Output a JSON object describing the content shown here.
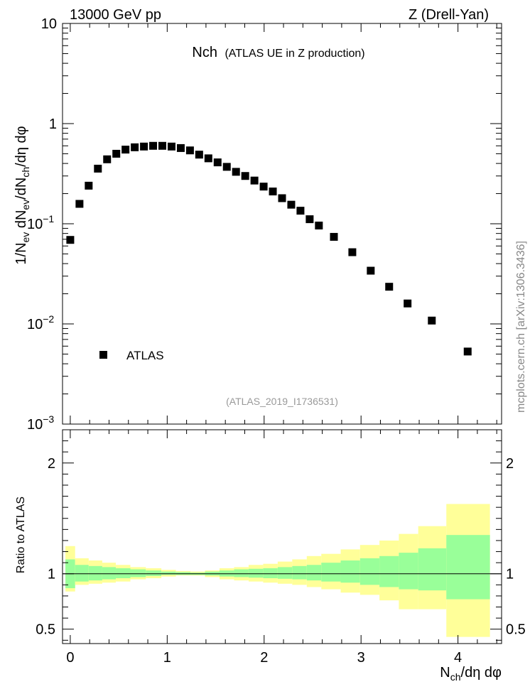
{
  "header": {
    "left": "13000 GeV pp",
    "right": "Z (Drell-Yan)"
  },
  "plot": {
    "title_main": "Nch",
    "title_sub": "(ATLAS UE in Z production)",
    "analysis_id": "(ATLAS_2019_I1736531)",
    "side_label": "mcplots.cern.ch [arXiv:1306.3436]"
  },
  "colors": {
    "marker": "#000000",
    "band_inner": "#99ff99",
    "band_outer": "#ffff99",
    "analysis_id_text": "#999999",
    "side_label_text": "#888888"
  },
  "chart_data": [
    {
      "type": "scatter",
      "panel": "main",
      "y_scale": "log",
      "ylim": [
        0.001,
        10
      ],
      "xlim": [
        -0.08,
        4.45
      ],
      "ylabel": "1/N_ev dN_ev/dN_ch/dη dφ",
      "y_ticks": [
        {
          "value": 10,
          "label": "10"
        },
        {
          "value": 1,
          "label": "1"
        },
        {
          "value": 0.1,
          "label": "10",
          "exp": "−1"
        },
        {
          "value": 0.01,
          "label": "10",
          "exp": "−2"
        },
        {
          "value": 0.001,
          "label": "10",
          "exp": "−3"
        }
      ],
      "legend": {
        "entries": [
          "ATLAS"
        ],
        "placement": "lower-left"
      },
      "series": [
        {
          "name": "ATLAS",
          "points": [
            [
              0.0,
              0.069
            ],
            [
              0.095,
              0.158
            ],
            [
              0.19,
              0.24
            ],
            [
              0.285,
              0.355
            ],
            [
              0.38,
              0.44
            ],
            [
              0.475,
              0.5
            ],
            [
              0.57,
              0.55
            ],
            [
              0.665,
              0.58
            ],
            [
              0.76,
              0.59
            ],
            [
              0.855,
              0.6
            ],
            [
              0.95,
              0.6
            ],
            [
              1.045,
              0.59
            ],
            [
              1.14,
              0.57
            ],
            [
              1.235,
              0.54
            ],
            [
              1.33,
              0.49
            ],
            [
              1.425,
              0.45
            ],
            [
              1.52,
              0.41
            ],
            [
              1.615,
              0.37
            ],
            [
              1.71,
              0.33
            ],
            [
              1.805,
              0.3
            ],
            [
              1.9,
              0.27
            ],
            [
              1.995,
              0.235
            ],
            [
              2.09,
              0.21
            ],
            [
              2.185,
              0.18
            ],
            [
              2.28,
              0.155
            ],
            [
              2.375,
              0.135
            ],
            [
              2.47,
              0.111
            ],
            [
              2.565,
              0.096
            ],
            [
              2.72,
              0.074
            ],
            [
              2.91,
              0.052
            ],
            [
              3.1,
              0.034
            ],
            [
              3.29,
              0.0235
            ],
            [
              3.48,
              0.016
            ],
            [
              3.73,
              0.0108
            ],
            [
              4.1,
              0.0053
            ]
          ]
        }
      ]
    },
    {
      "type": "area",
      "panel": "ratio",
      "ylim": [
        0.37,
        2.3
      ],
      "xlim": [
        -0.08,
        4.45
      ],
      "ylabel": "Ratio to ATLAS",
      "xlabel": "N_ch/dη dφ",
      "y_ticks": [
        2,
        1,
        0.5
      ],
      "x_ticks": [
        0,
        1,
        2,
        3,
        4
      ],
      "reference_line": 1,
      "bins": [
        {
          "x0": -0.05,
          "x1": 0.05,
          "inner": [
            0.87,
            1.13
          ],
          "outer": [
            0.84,
            1.25
          ]
        },
        {
          "x0": 0.05,
          "x1": 0.19,
          "inner": [
            0.93,
            1.08
          ],
          "outer": [
            0.9,
            1.14
          ]
        },
        {
          "x0": 0.19,
          "x1": 0.33,
          "inner": [
            0.94,
            1.07
          ],
          "outer": [
            0.91,
            1.12
          ]
        },
        {
          "x0": 0.33,
          "x1": 0.47,
          "inner": [
            0.95,
            1.06
          ],
          "outer": [
            0.92,
            1.1
          ]
        },
        {
          "x0": 0.47,
          "x1": 0.62,
          "inner": [
            0.96,
            1.05
          ],
          "outer": [
            0.93,
            1.08
          ]
        },
        {
          "x0": 0.62,
          "x1": 0.78,
          "inner": [
            0.97,
            1.04
          ],
          "outer": [
            0.95,
            1.06
          ]
        },
        {
          "x0": 0.78,
          "x1": 0.94,
          "inner": [
            0.98,
            1.03
          ],
          "outer": [
            0.96,
            1.05
          ]
        },
        {
          "x0": 0.94,
          "x1": 1.09,
          "inner": [
            0.99,
            1.02
          ],
          "outer": [
            0.975,
            1.035
          ]
        },
        {
          "x0": 1.09,
          "x1": 1.24,
          "inner": [
            0.99,
            1.015
          ],
          "outer": [
            0.985,
            1.025
          ]
        },
        {
          "x0": 1.24,
          "x1": 1.39,
          "inner": [
            0.99,
            1.01
          ],
          "outer": [
            0.985,
            1.02
          ]
        },
        {
          "x0": 1.39,
          "x1": 1.54,
          "inner": [
            0.985,
            1.02
          ],
          "outer": [
            0.97,
            1.03
          ]
        },
        {
          "x0": 1.54,
          "x1": 1.69,
          "inner": [
            0.975,
            1.03
          ],
          "outer": [
            0.95,
            1.05
          ]
        },
        {
          "x0": 1.69,
          "x1": 1.84,
          "inner": [
            0.97,
            1.04
          ],
          "outer": [
            0.94,
            1.06
          ]
        },
        {
          "x0": 1.84,
          "x1": 1.99,
          "inner": [
            0.965,
            1.045
          ],
          "outer": [
            0.93,
            1.08
          ]
        },
        {
          "x0": 1.99,
          "x1": 2.14,
          "inner": [
            0.96,
            1.05
          ],
          "outer": [
            0.92,
            1.09
          ]
        },
        {
          "x0": 2.14,
          "x1": 2.29,
          "inner": [
            0.955,
            1.06
          ],
          "outer": [
            0.91,
            1.11
          ]
        },
        {
          "x0": 2.29,
          "x1": 2.44,
          "inner": [
            0.95,
            1.07
          ],
          "outer": [
            0.9,
            1.13
          ]
        },
        {
          "x0": 2.44,
          "x1": 2.59,
          "inner": [
            0.94,
            1.08
          ],
          "outer": [
            0.88,
            1.16
          ]
        },
        {
          "x0": 2.59,
          "x1": 2.79,
          "inner": [
            0.93,
            1.1
          ],
          "outer": [
            0.86,
            1.18
          ]
        },
        {
          "x0": 2.79,
          "x1": 2.99,
          "inner": [
            0.92,
            1.12
          ],
          "outer": [
            0.83,
            1.22
          ]
        },
        {
          "x0": 2.99,
          "x1": 3.19,
          "inner": [
            0.9,
            1.14
          ],
          "outer": [
            0.81,
            1.26
          ]
        },
        {
          "x0": 3.19,
          "x1": 3.39,
          "inner": [
            0.88,
            1.16
          ],
          "outer": [
            0.76,
            1.3
          ]
        },
        {
          "x0": 3.39,
          "x1": 3.59,
          "inner": [
            0.86,
            1.19
          ],
          "outer": [
            0.68,
            1.36
          ]
        },
        {
          "x0": 3.59,
          "x1": 3.88,
          "inner": [
            0.85,
            1.23
          ],
          "outer": [
            0.68,
            1.43
          ]
        },
        {
          "x0": 3.88,
          "x1": 4.33,
          "inner": [
            0.77,
            1.35
          ],
          "outer": [
            0.43,
            1.63
          ]
        }
      ]
    }
  ]
}
